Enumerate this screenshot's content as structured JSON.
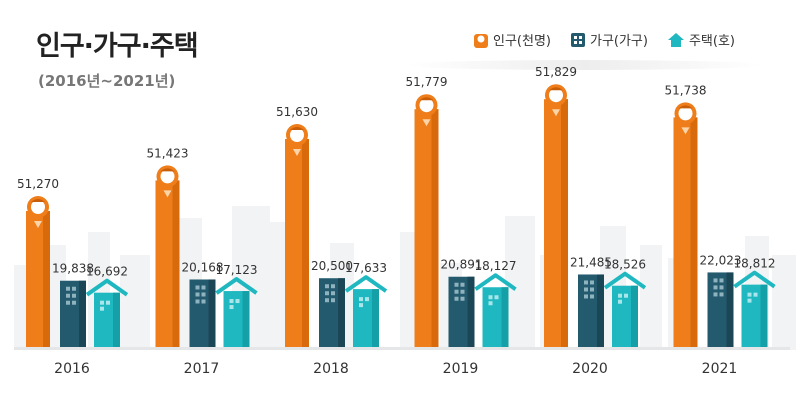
{
  "title": "인구·가구·주택",
  "subtitle": "(2016년~2021년)",
  "legend": {
    "population": "인구(천명)",
    "households": "가구(가구)",
    "housing": "주택(호)"
  },
  "colors": {
    "population": "#ee7d1a",
    "households": "#245a6e",
    "housing": "#1fb8c0"
  },
  "chart_data": {
    "type": "bar",
    "title": "인구·가구·주택",
    "subtitle": "(2016년~2021년)",
    "categories": [
      "2016",
      "2017",
      "2018",
      "2019",
      "2020",
      "2021"
    ],
    "series": [
      {
        "name": "인구(천명)",
        "values": [
          51270,
          51423,
          51630,
          51779,
          51829,
          51738
        ],
        "labels": [
          "51,270",
          "51,423",
          "51,630",
          "51,779",
          "51,829",
          "51,738"
        ]
      },
      {
        "name": "가구(가구)",
        "values": [
          19838,
          20168,
          20500,
          20891,
          21485,
          22023
        ],
        "labels": [
          "19,838",
          "20,168",
          "20,500",
          "20,891",
          "21,485",
          "22,023"
        ]
      },
      {
        "name": "주택(호)",
        "values": [
          16692,
          17123,
          17633,
          18127,
          18526,
          18812
        ],
        "labels": [
          "16,692",
          "17,123",
          "17,633",
          "18,127",
          "18,526",
          "18,812"
        ]
      }
    ],
    "legend_position": "top-right"
  }
}
